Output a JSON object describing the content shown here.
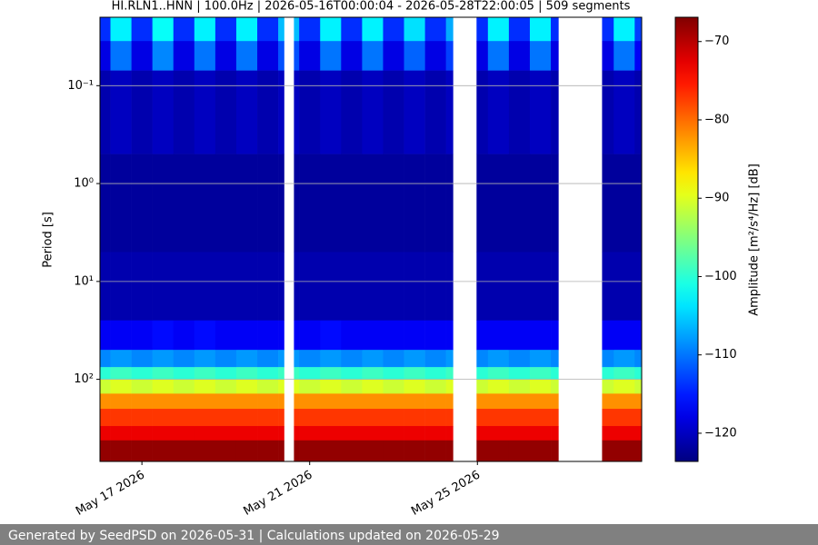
{
  "chart_data": {
    "type": "heatmap",
    "title": "HI.RLN1..HNN | 100.0Hz | 2026-05-16T00:00:04 - 2026-05-28T22:00:05 | 509 segments",
    "ylabel": "Period [s]",
    "colormap": "jet",
    "ylog": true,
    "yinvert": true,
    "grid": true,
    "xlim": [
      "2026-05-16T00:00:04",
      "2026-05-28T22:00:05"
    ],
    "ylim": [
      0.02,
      690
    ],
    "xticks": [
      {
        "value": "2026-05-17T00:00:00",
        "label": "May 17 2026"
      },
      {
        "value": "2026-05-21T00:00:00",
        "label": "May 21 2026"
      },
      {
        "value": "2026-05-25T00:00:00",
        "label": "May 25 2026"
      }
    ],
    "yticks": [
      {
        "value": 0.1,
        "label": "10⁻¹"
      },
      {
        "value": 1,
        "label": "10⁰"
      },
      {
        "value": 10,
        "label": "10¹"
      },
      {
        "value": 100,
        "label": "10²"
      }
    ],
    "xedges": [
      "2026-05-16T00:00:04",
      "2026-05-16T06:00:00",
      "2026-05-16T18:00:00",
      "2026-05-17T06:00:00",
      "2026-05-17T18:00:00",
      "2026-05-18T06:00:00",
      "2026-05-18T18:00:00",
      "2026-05-19T06:00:00",
      "2026-05-19T18:00:00",
      "2026-05-20T06:00:00",
      "2026-05-20T09:20:00",
      "2026-05-20T15:00:00",
      "2026-05-20T18:00:00",
      "2026-05-21T06:00:00",
      "2026-05-21T18:00:00",
      "2026-05-22T06:00:00",
      "2026-05-22T18:00:00",
      "2026-05-23T06:00:00",
      "2026-05-23T18:00:00",
      "2026-05-24T06:00:00",
      "2026-05-24T10:00:00",
      "2026-05-24T23:30:00",
      "2026-05-25T06:00:00",
      "2026-05-25T18:00:00",
      "2026-05-26T06:00:00",
      "2026-05-26T18:00:00",
      "2026-05-26T22:20:00",
      "2026-05-27T23:20:00",
      "2026-05-28T06:00:00",
      "2026-05-28T18:00:00",
      "2026-05-28T22:00:05"
    ],
    "yedges": [
      0.02,
      0.035,
      0.07,
      0.5,
      5,
      25,
      50,
      75,
      100,
      140,
      200,
      300,
      420,
      690
    ],
    "z": [
      [
        -114,
        -118,
        -121,
        -122,
        -121,
        -117,
        -109,
        -100,
        -91,
        -82,
        -77,
        -73,
        -68
      ],
      [
        -103,
        -110,
        -120,
        -122,
        -121,
        -117,
        -108,
        -99,
        -90,
        -82,
        -77,
        -73,
        -68
      ],
      [
        -114,
        -118,
        -121,
        -122,
        -121,
        -117,
        -109,
        -100,
        -91,
        -82,
        -77,
        -73,
        -68
      ],
      [
        -102,
        -109,
        -120,
        -122,
        -121,
        -116,
        -108,
        -99,
        -90,
        -82,
        -77,
        -73,
        -68
      ],
      [
        -114,
        -118,
        -121,
        -122,
        -121,
        -117,
        -109,
        -100,
        -91,
        -82,
        -77,
        -73,
        -68
      ],
      [
        -103,
        -110,
        -120,
        -122,
        -121,
        -116,
        -108,
        -99,
        -90,
        -82,
        -77,
        -73,
        -68
      ],
      [
        -114,
        -118,
        -121,
        -122,
        -121,
        -117,
        -109,
        -100,
        -91,
        -82,
        -77,
        -73,
        -68
      ],
      [
        -103,
        -110,
        -120,
        -122,
        -121,
        -117,
        -108,
        -99,
        -90,
        -82,
        -77,
        -73,
        -68
      ],
      [
        -114,
        -118,
        -121,
        -122,
        -121,
        -117,
        -109,
        -100,
        -91,
        -82,
        -77,
        -73,
        -68
      ],
      [
        -106,
        -112,
        -120,
        -122,
        -121,
        -117,
        -108,
        -99,
        -90,
        -82,
        -77,
        -73,
        -68
      ],
      null,
      [
        -106,
        -112,
        -120,
        -122,
        -121,
        -117,
        -108,
        -99,
        -90,
        -82,
        -77,
        -73,
        -68
      ],
      [
        -114,
        -118,
        -121,
        -122,
        -121,
        -117,
        -109,
        -100,
        -91,
        -82,
        -77,
        -73,
        -68
      ],
      [
        -103,
        -110,
        -120,
        -122,
        -121,
        -116,
        -108,
        -99,
        -90,
        -82,
        -77,
        -73,
        -68
      ],
      [
        -114,
        -118,
        -121,
        -122,
        -121,
        -117,
        -109,
        -100,
        -91,
        -82,
        -77,
        -73,
        -68
      ],
      [
        -103,
        -110,
        -120,
        -122,
        -121,
        -117,
        -108,
        -99,
        -90,
        -82,
        -77,
        -73,
        -68
      ],
      [
        -114,
        -118,
        -121,
        -122,
        -121,
        -117,
        -109,
        -100,
        -91,
        -82,
        -77,
        -73,
        -68
      ],
      [
        -104,
        -111,
        -120,
        -122,
        -121,
        -117,
        -108,
        -99,
        -90,
        -82,
        -77,
        -73,
        -68
      ],
      [
        -114,
        -118,
        -121,
        -122,
        -121,
        -117,
        -109,
        -100,
        -91,
        -82,
        -77,
        -73,
        -68
      ],
      [
        -107,
        -113,
        -120,
        -122,
        -121,
        -117,
        -108,
        -99,
        -90,
        -82,
        -77,
        -73,
        -68
      ],
      null,
      [
        -114,
        -118,
        -121,
        -122,
        -121,
        -117,
        -109,
        -100,
        -91,
        -82,
        -77,
        -73,
        -68
      ],
      [
        -103,
        -110,
        -120,
        -122,
        -121,
        -117,
        -108,
        -99,
        -90,
        -82,
        -77,
        -73,
        -68
      ],
      [
        -114,
        -118,
        -121,
        -122,
        -121,
        -117,
        -109,
        -100,
        -91,
        -82,
        -77,
        -73,
        -68
      ],
      [
        -103,
        -110,
        -120,
        -122,
        -121,
        -117,
        -108,
        -99,
        -90,
        -82,
        -77,
        -73,
        -68
      ],
      [
        -114,
        -118,
        -121,
        -122,
        -121,
        -117,
        -109,
        -100,
        -91,
        -82,
        -77,
        -73,
        -68
      ],
      null,
      [
        -114,
        -118,
        -121,
        -122,
        -121,
        -117,
        -109,
        -100,
        -91,
        -82,
        -77,
        -73,
        -68
      ],
      [
        -103,
        -110,
        -120,
        -122,
        -121,
        -117,
        -108,
        -99,
        -90,
        -82,
        -77,
        -73,
        -68
      ],
      [
        -113,
        -117,
        -121,
        -122,
        -121,
        -117,
        -109,
        -100,
        -91,
        -82,
        -77,
        -73,
        -68
      ]
    ],
    "clim": [
      -123.6,
      -66.9
    ],
    "cticks": [
      {
        "value": -70,
        "label": "−70"
      },
      {
        "value": -80,
        "label": "−80"
      },
      {
        "value": -90,
        "label": "−90"
      },
      {
        "value": -100,
        "label": "−100"
      },
      {
        "value": -110,
        "label": "−110"
      },
      {
        "value": -120,
        "label": "−120"
      }
    ],
    "clabel": "Amplitude [m²/s⁴/Hz] [dB]"
  },
  "footer": {
    "text": "Generated by SeedPSD on 2026-05-31 | Calculations updated on 2026-05-29"
  }
}
